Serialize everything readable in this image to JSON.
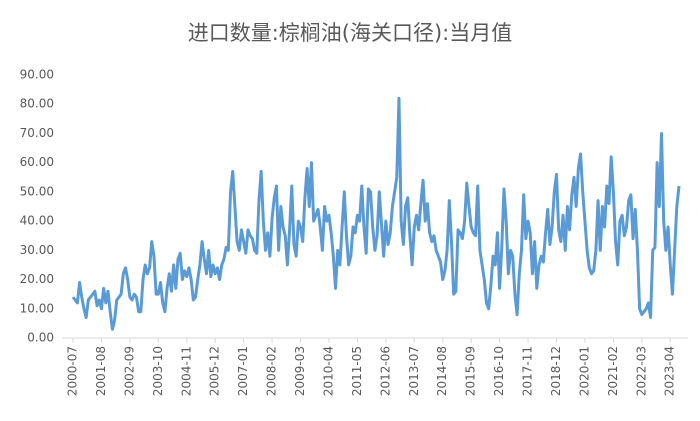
{
  "chart_data": {
    "type": "line",
    "title": "进口数量:棕榈油(海关口径):当月值",
    "categories": [
      "2000-07",
      null,
      null,
      null,
      null,
      null,
      null,
      null,
      null,
      null,
      null,
      null,
      null,
      "2001-08",
      null,
      null,
      null,
      null,
      null,
      null,
      null,
      null,
      null,
      null,
      null,
      null,
      "2002-09",
      null,
      null,
      null,
      null,
      null,
      null,
      null,
      null,
      null,
      null,
      null,
      null,
      "2003-10",
      null,
      null,
      null,
      null,
      null,
      null,
      null,
      null,
      null,
      null,
      null,
      null,
      "2004-11",
      null,
      null,
      null,
      null,
      null,
      null,
      null,
      null,
      null,
      null,
      null,
      null,
      "2005-12",
      null,
      null,
      null,
      null,
      null,
      null,
      null,
      null,
      null,
      null,
      null,
      null,
      "2007-01",
      null,
      null,
      null,
      null,
      null,
      null,
      null,
      null,
      null,
      null,
      null,
      null,
      "2008-02",
      null,
      null,
      null,
      null,
      null,
      null,
      null,
      null,
      null,
      null,
      null,
      null,
      "2009-03",
      null,
      null,
      null,
      null,
      null,
      null,
      null,
      null,
      null,
      null,
      null,
      null,
      "2010-04",
      null,
      null,
      null,
      null,
      null,
      null,
      null,
      null,
      null,
      null,
      null,
      null,
      "2011-05",
      null,
      null,
      null,
      null,
      null,
      null,
      null,
      null,
      null,
      null,
      null,
      null,
      "2012-06",
      null,
      null,
      null,
      null,
      null,
      null,
      null,
      null,
      null,
      null,
      null,
      null,
      "2013-07",
      null,
      null,
      null,
      null,
      null,
      null,
      null,
      null,
      null,
      null,
      null,
      null,
      "2014-08",
      null,
      null,
      null,
      null,
      null,
      null,
      null,
      null,
      null,
      null,
      null,
      null,
      "2015-09",
      null,
      null,
      null,
      null,
      null,
      null,
      null,
      null,
      null,
      null,
      null,
      null,
      "2016-10",
      null,
      null,
      null,
      null,
      null,
      null,
      null,
      null,
      null,
      null,
      null,
      null,
      "2017-11",
      null,
      null,
      null,
      null,
      null,
      null,
      null,
      null,
      null,
      null,
      null,
      null,
      "2018-12",
      null,
      null,
      null,
      null,
      null,
      null,
      null,
      null,
      null,
      null,
      null,
      null,
      "2020-01",
      null,
      null,
      null,
      null,
      null,
      null,
      null,
      null,
      null,
      null,
      null,
      null,
      "2021-02",
      null,
      null,
      null,
      null,
      null,
      null,
      null,
      null,
      null,
      null,
      null,
      null,
      "2022-03",
      null,
      null,
      null,
      null,
      null,
      null,
      null,
      null,
      null,
      null,
      null,
      null,
      "2023-04",
      null,
      null,
      null,
      null
    ],
    "values": [
      14,
      13,
      12,
      19,
      14,
      10,
      7,
      13,
      14,
      15,
      16,
      11,
      13,
      10,
      17,
      12,
      16,
      9,
      3,
      6,
      13,
      14,
      15,
      22,
      24,
      20,
      14,
      13,
      15,
      14,
      9,
      9,
      20,
      25,
      22,
      24,
      33,
      28,
      15,
      15,
      19,
      12,
      9,
      17,
      22,
      16,
      25,
      17,
      27,
      29,
      20,
      23,
      21,
      24,
      20,
      13,
      14,
      20,
      25,
      33,
      27,
      22,
      30,
      21,
      25,
      22,
      24,
      20,
      25,
      27,
      31,
      30,
      50,
      57,
      45,
      33,
      30,
      37,
      33,
      29,
      37,
      35,
      34,
      30,
      29,
      47,
      57,
      40,
      30,
      36,
      28,
      41,
      48,
      52,
      30,
      45,
      38,
      35,
      25,
      37,
      52,
      32,
      28,
      40,
      38,
      33,
      48,
      58,
      45,
      60,
      40,
      42,
      44,
      38,
      30,
      45,
      40,
      42,
      36,
      28,
      17,
      30,
      25,
      38,
      50,
      35,
      25,
      28,
      38,
      36,
      42,
      40,
      52,
      38,
      29,
      51,
      50,
      38,
      30,
      35,
      50,
      39,
      28,
      40,
      32,
      36,
      45,
      50,
      55,
      82,
      40,
      32,
      45,
      48,
      35,
      25,
      38,
      42,
      37,
      46,
      54,
      40,
      46,
      36,
      33,
      35,
      30,
      28,
      26,
      20,
      23,
      30,
      47,
      33,
      15,
      16,
      37,
      36,
      34,
      40,
      53,
      45,
      38,
      36,
      35,
      52,
      30,
      25,
      20,
      12,
      10,
      18,
      28,
      25,
      36,
      17,
      31,
      51,
      40,
      22,
      30,
      28,
      15,
      8,
      22,
      30,
      49,
      34,
      40,
      36,
      22,
      33,
      17,
      25,
      28,
      26,
      36,
      44,
      32,
      38,
      50,
      56,
      37,
      33,
      42,
      30,
      45,
      37,
      49,
      55,
      45,
      58,
      63,
      50,
      40,
      30,
      24,
      22,
      23,
      30,
      47,
      30,
      45,
      38,
      52,
      46,
      62,
      50,
      33,
      25,
      40,
      42,
      35,
      38,
      47,
      49,
      34,
      44,
      30,
      10,
      8,
      9,
      10,
      12,
      7,
      30,
      31,
      60,
      45,
      70,
      40,
      30,
      38,
      25,
      15,
      30,
      45,
      52
    ],
    "color": "#5b9bd5",
    "ylim": [
      0,
      90
    ],
    "yticks": [
      {
        "value": 0,
        "label": "0.00"
      },
      {
        "value": 10,
        "label": "10.00"
      },
      {
        "value": 20,
        "label": "20.00"
      },
      {
        "value": 30,
        "label": "30.00"
      },
      {
        "value": 40,
        "label": "40.00"
      },
      {
        "value": 50,
        "label": "50.00"
      },
      {
        "value": 60,
        "label": "60.00"
      },
      {
        "value": 70,
        "label": "70.00"
      },
      {
        "value": 80,
        "label": "80.00"
      },
      {
        "value": 90,
        "label": "90.00"
      }
    ]
  }
}
